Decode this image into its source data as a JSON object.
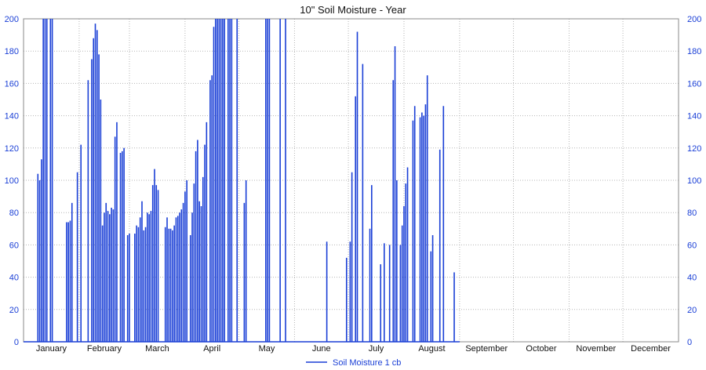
{
  "chart_data": {
    "type": "bar",
    "title": "10\" Soil Moisture - Year",
    "xlabel": "",
    "ylabel": "",
    "ylim": [
      0,
      200
    ],
    "yticks": [
      0,
      20,
      40,
      60,
      80,
      100,
      120,
      140,
      160,
      180,
      200
    ],
    "x_range_days": [
      0,
      365
    ],
    "months": [
      "January",
      "February",
      "March",
      "April",
      "May",
      "June",
      "July",
      "August",
      "September",
      "October",
      "November",
      "December"
    ],
    "grid": true,
    "legend_position": "bottom-center",
    "series": [
      {
        "name": "Soil Moisture 1 cb",
        "color": "#1a3fd6",
        "points": [
          [
            8,
            104
          ],
          [
            9,
            100
          ],
          [
            10,
            113
          ],
          [
            11,
            200
          ],
          [
            12,
            200
          ],
          [
            13,
            200
          ],
          [
            15,
            200
          ],
          [
            16,
            200
          ],
          [
            24,
            74
          ],
          [
            25,
            74
          ],
          [
            26,
            75
          ],
          [
            27,
            86
          ],
          [
            30,
            105
          ],
          [
            32,
            122
          ],
          [
            34,
            0
          ],
          [
            36,
            162
          ],
          [
            38,
            175
          ],
          [
            39,
            188
          ],
          [
            40,
            197
          ],
          [
            41,
            193
          ],
          [
            42,
            178
          ],
          [
            43,
            150
          ],
          [
            44,
            72
          ],
          [
            45,
            80
          ],
          [
            46,
            86
          ],
          [
            47,
            81
          ],
          [
            48,
            79
          ],
          [
            49,
            83
          ],
          [
            50,
            82
          ],
          [
            51,
            127
          ],
          [
            52,
            136
          ],
          [
            54,
            117
          ],
          [
            55,
            118
          ],
          [
            56,
            120
          ],
          [
            58,
            66
          ],
          [
            59,
            67
          ],
          [
            62,
            67
          ],
          [
            63,
            72
          ],
          [
            64,
            71
          ],
          [
            65,
            77
          ],
          [
            66,
            87
          ],
          [
            67,
            69
          ],
          [
            68,
            71
          ],
          [
            69,
            80
          ],
          [
            70,
            79
          ],
          [
            71,
            81
          ],
          [
            72,
            97
          ],
          [
            73,
            107
          ],
          [
            74,
            97
          ],
          [
            75,
            94
          ],
          [
            79,
            71
          ],
          [
            80,
            77
          ],
          [
            81,
            70
          ],
          [
            82,
            70
          ],
          [
            83,
            69
          ],
          [
            84,
            72
          ],
          [
            85,
            77
          ],
          [
            86,
            78
          ],
          [
            87,
            80
          ],
          [
            88,
            82
          ],
          [
            89,
            86
          ],
          [
            90,
            93
          ],
          [
            91,
            100
          ],
          [
            93,
            66
          ],
          [
            94,
            80
          ],
          [
            95,
            98
          ],
          [
            96,
            118
          ],
          [
            97,
            125
          ],
          [
            98,
            87
          ],
          [
            99,
            84
          ],
          [
            100,
            102
          ],
          [
            101,
            122
          ],
          [
            102,
            136
          ],
          [
            104,
            162
          ],
          [
            105,
            165
          ],
          [
            106,
            195
          ],
          [
            107,
            200
          ],
          [
            108,
            200
          ],
          [
            109,
            200
          ],
          [
            110,
            200
          ],
          [
            111,
            200
          ],
          [
            112,
            200
          ],
          [
            114,
            200
          ],
          [
            115,
            200
          ],
          [
            116,
            200
          ],
          [
            119,
            200
          ],
          [
            123,
            86
          ],
          [
            124,
            100
          ],
          [
            135,
            200
          ],
          [
            136,
            200
          ],
          [
            137,
            200
          ],
          [
            143,
            200
          ],
          [
            146,
            200
          ],
          [
            169,
            62
          ],
          [
            180,
            52
          ],
          [
            182,
            62
          ],
          [
            183,
            105
          ],
          [
            185,
            152
          ],
          [
            186,
            192
          ],
          [
            189,
            172
          ],
          [
            193,
            70
          ],
          [
            194,
            97
          ],
          [
            199,
            48
          ],
          [
            201,
            61
          ],
          [
            204,
            60
          ],
          [
            206,
            162
          ],
          [
            207,
            183
          ],
          [
            208,
            100
          ],
          [
            210,
            60
          ],
          [
            211,
            72
          ],
          [
            212,
            84
          ],
          [
            213,
            98
          ],
          [
            214,
            108
          ],
          [
            217,
            137
          ],
          [
            218,
            146
          ],
          [
            221,
            139
          ],
          [
            222,
            142
          ],
          [
            223,
            140
          ],
          [
            224,
            147
          ],
          [
            225,
            165
          ],
          [
            227,
            56
          ],
          [
            228,
            66
          ],
          [
            232,
            119
          ],
          [
            234,
            146
          ],
          [
            240,
            43
          ]
        ]
      }
    ]
  }
}
